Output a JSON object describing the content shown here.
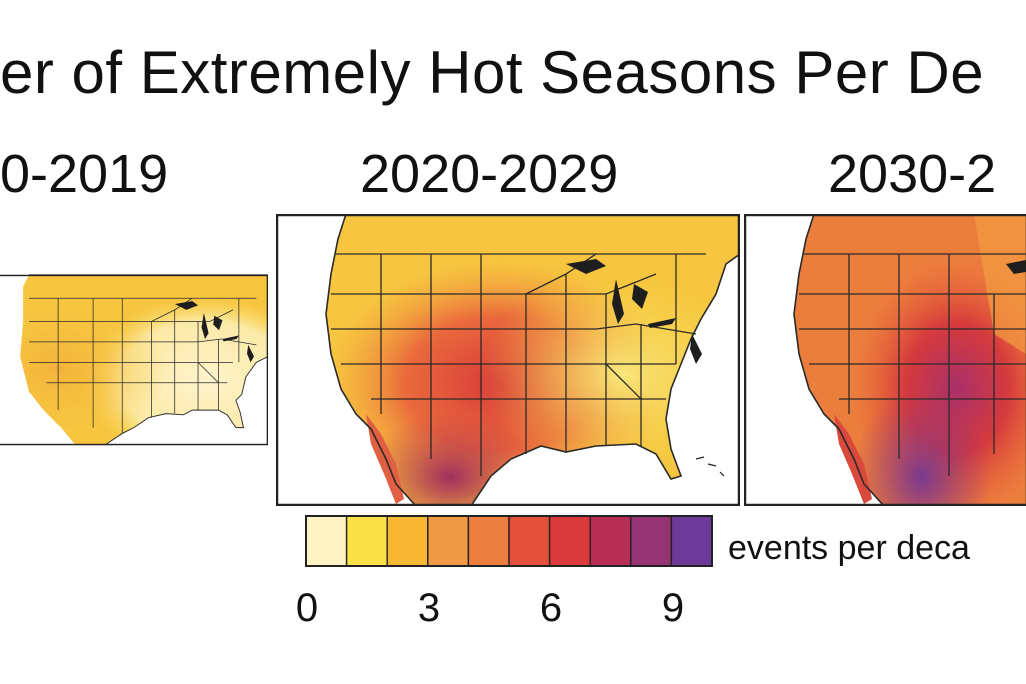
{
  "figure": {
    "title": "er of Extremely Hot Seasons Per De"
  },
  "panels": [
    {
      "label": "0-2019",
      "level": "low"
    },
    {
      "label": "2020-2029",
      "level": "mid"
    },
    {
      "label": "2030-2",
      "level": "high"
    }
  ],
  "legend": {
    "units": "events per deca",
    "ticks": [
      "0",
      "3",
      "6",
      "9"
    ],
    "min": 0,
    "max": 10,
    "colors": [
      "#fff2c4",
      "#fbe047",
      "#f7b733",
      "#f09a43",
      "#ec7f3f",
      "#e5503a",
      "#d93a3c",
      "#b82d55",
      "#963372",
      "#6d3a9a"
    ]
  }
}
